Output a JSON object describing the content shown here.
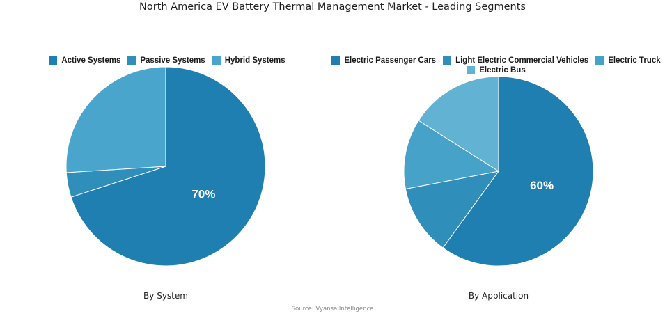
{
  "title": "North America EV Battery Thermal Management Market - Leading Segments",
  "source": "Source: Vyansa Intelligence",
  "chart_data": [
    {
      "type": "pie",
      "caption": "By System",
      "categories": [
        "Active Systems",
        "Passive Systems",
        "Hybrid Systems"
      ],
      "values": [
        70,
        4,
        26
      ],
      "colors": [
        "#1f7fb0",
        "#2f8fba",
        "#4aa5cc"
      ],
      "data_labels": [
        "70%",
        "",
        ""
      ],
      "legend": "top"
    },
    {
      "type": "pie",
      "caption": "By Application",
      "categories": [
        "Electric Passenger Cars",
        "Light Electric Commercial Vehicles",
        "Electric Truck",
        "Electric Bus"
      ],
      "values": [
        60,
        12,
        12,
        16
      ],
      "colors": [
        "#1f7fb0",
        "#2f8fba",
        "#47a2c9",
        "#62b2d3"
      ],
      "data_labels": [
        "60%",
        "",
        "",
        ""
      ],
      "legend": "top"
    }
  ]
}
